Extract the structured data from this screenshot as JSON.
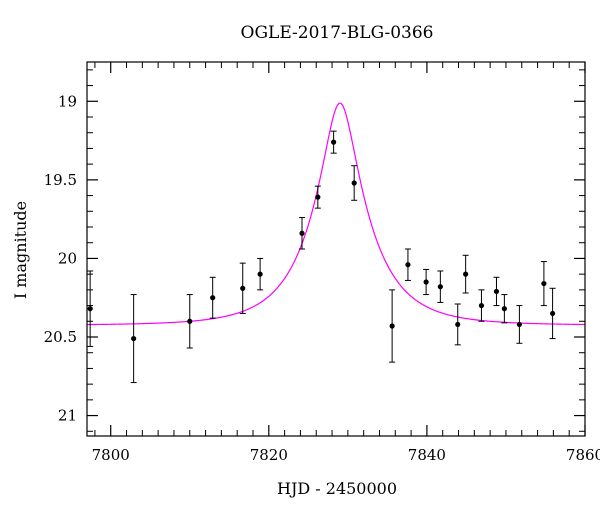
{
  "chart_data": {
    "type": "scatter",
    "title": "OGLE-2017-BLG-0366",
    "xlabel": "HJD - 2450000",
    "ylabel": "I magnitude",
    "xlim": [
      7797,
      7860
    ],
    "ylim": [
      21.13,
      18.75
    ],
    "y_inverted": true,
    "x_ticks": [
      7800,
      7820,
      7840,
      7860
    ],
    "y_ticks": [
      19,
      19.5,
      20,
      20.5,
      21
    ],
    "x_tick_labels": [
      "7800",
      "7820",
      "7840",
      "7860"
    ],
    "y_tick_labels": [
      "19",
      "19.5",
      "20",
      "20.5",
      "21"
    ],
    "x_minor_step": 2,
    "y_minor_step": 0.1,
    "grid": false,
    "legend": "none",
    "series": [
      {
        "kind": "points",
        "color": "#000000",
        "x": [
          7797.4,
          7802.9,
          7810.0,
          7812.9,
          7816.7,
          7818.9,
          7824.2,
          7826.2,
          7828.2,
          7830.8,
          7835.6,
          7837.6,
          7839.9,
          7841.7,
          7843.9,
          7844.9,
          7846.9,
          7848.8,
          7849.8,
          7851.7,
          7854.8,
          7855.9
        ],
        "y": [
          20.32,
          20.51,
          20.4,
          20.25,
          20.19,
          20.1,
          19.84,
          19.61,
          19.26,
          19.52,
          20.43,
          20.04,
          20.15,
          20.18,
          20.42,
          20.1,
          20.3,
          20.21,
          20.32,
          20.42,
          20.16,
          20.35
        ],
        "yerr": [
          0.24,
          0.28,
          0.17,
          0.13,
          0.16,
          0.1,
          0.1,
          0.07,
          0.07,
          0.11,
          0.23,
          0.1,
          0.08,
          0.1,
          0.13,
          0.12,
          0.1,
          0.09,
          0.09,
          0.12,
          0.14,
          0.16
        ]
      },
      {
        "kind": "line",
        "color": "#ff00ff",
        "model": "pspl",
        "t0": 7829.0,
        "u0": 0.28,
        "tE": 7.0,
        "baseline": 20.425
      }
    ]
  }
}
